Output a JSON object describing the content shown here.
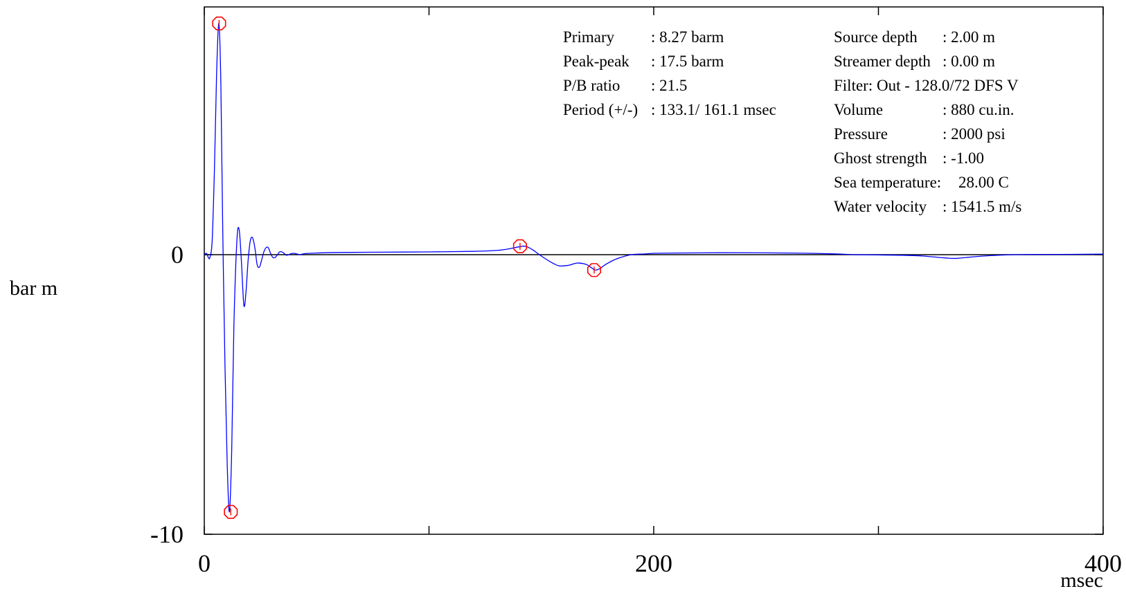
{
  "chart_data": {
    "type": "line",
    "xlabel": "msec",
    "ylabel": "bar m",
    "xlim": [
      0,
      400
    ],
    "ylim": [
      -10,
      10
    ],
    "grid": false,
    "x_ticks": [
      {
        "value": 0,
        "label": "0"
      },
      {
        "value": 200,
        "label": "200"
      },
      {
        "value": 400,
        "label": "400"
      }
    ],
    "y_ticks": [
      {
        "value": 0,
        "label": "0"
      },
      {
        "value": -10,
        "label": "-10"
      }
    ],
    "x_minor_ticks": [
      100,
      300
    ],
    "series": [
      {
        "color": "#0000ff",
        "x": [
          0,
          1,
          1.8,
          2.5,
          3.5,
          4.5,
          5.5,
          6.5,
          7.4,
          8.2,
          9.2,
          10.2,
          11.2,
          12.2,
          13.2,
          14.5,
          15.5,
          16.5,
          17.6,
          18.5,
          19.5,
          20.5,
          21.5,
          22.6,
          23.5,
          24.5,
          25.5,
          26.5,
          27.5,
          28.5,
          29.5,
          30.5,
          31.5,
          32.6,
          33.5,
          34.5,
          35.5,
          36.5,
          37.5,
          38.5,
          39.5,
          40.5,
          41.5,
          42.5,
          43.5,
          45,
          47,
          50,
          60,
          80,
          100,
          120,
          130,
          135,
          140,
          143,
          146,
          150,
          155,
          158,
          162,
          166,
          170,
          172,
          174,
          176,
          178,
          182,
          186,
          190,
          194,
          197,
          200,
          210,
          230,
          260,
          280,
          290,
          310,
          320,
          330,
          335,
          345,
          360,
          380,
          400
        ],
        "y": [
          0,
          0.05,
          -0.1,
          -0.1,
          0.5,
          3.0,
          6.5,
          8.27,
          6.0,
          1.0,
          -4.0,
          -7.5,
          -9.2,
          -7.0,
          -2.5,
          0.5,
          0.9,
          -0.2,
          -1.8,
          -1.4,
          -0.2,
          0.5,
          0.6,
          0.2,
          -0.35,
          -0.45,
          -0.2,
          0.1,
          0.25,
          0.25,
          0.05,
          -0.1,
          -0.1,
          0.0,
          0.1,
          0.1,
          0.05,
          -0.02,
          0.0,
          0.03,
          0.05,
          0.04,
          0.02,
          0.0,
          0.02,
          0.04,
          0.05,
          0.06,
          0.08,
          0.09,
          0.1,
          0.12,
          0.15,
          0.2,
          0.28,
          0.3,
          0.18,
          -0.05,
          -0.3,
          -0.4,
          -0.38,
          -0.3,
          -0.35,
          -0.45,
          -0.55,
          -0.5,
          -0.38,
          -0.2,
          -0.08,
          0.0,
          0.02,
          0.03,
          0.05,
          0.06,
          0.07,
          0.06,
          0.03,
          0.0,
          -0.02,
          -0.05,
          -0.12,
          -0.13,
          -0.06,
          0.0,
          0.01,
          0.02
        ]
      }
    ],
    "markers": [
      {
        "x": 6.6,
        "y": 8.27
      },
      {
        "x": 11.8,
        "y": -9.2
      },
      {
        "x": 140.5,
        "y": 0.3
      },
      {
        "x": 173.5,
        "y": -0.55
      }
    ],
    "marker_color": "#ff0000",
    "info_left": [
      {
        "label": "Primary",
        "value": ":  8.27 barm"
      },
      {
        "label": "Peak-peak",
        "value": ":  17.5 barm"
      },
      {
        "label": "P/B ratio",
        "value": ":  21.5"
      },
      {
        "label": "Period (+/-)",
        "value": ": 133.1/ 161.1  msec"
      }
    ],
    "info_right": [
      {
        "label": "Source depth",
        "value": ":  2.00 m"
      },
      {
        "label": "Streamer depth",
        "value": ":  0.00 m"
      },
      {
        "label": "Filter: Out  - 128.0/72  DFS V",
        "value": ""
      },
      {
        "label": "Volume",
        "value": ":   880 cu.in."
      },
      {
        "label": "Pressure",
        "value": ":  2000 psi"
      },
      {
        "label": "Ghost strength",
        "value": ":  -1.00"
      },
      {
        "label": "Sea temperature:",
        "value": " 28.00 C"
      },
      {
        "label": "Water velocity",
        "value": ":  1541.5 m/s"
      }
    ]
  }
}
